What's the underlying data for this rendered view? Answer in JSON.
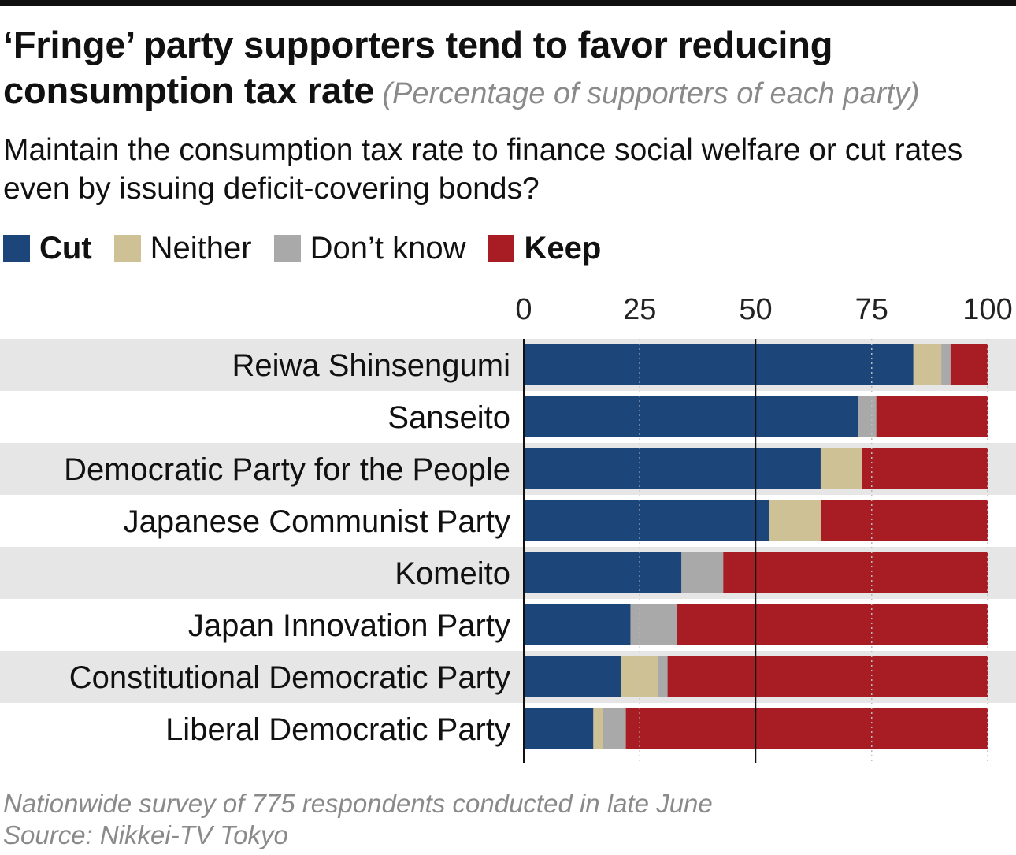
{
  "title": "‘Fringe’ party supporters tend to favor reducing consumption tax rate",
  "subtitle": "(Percentage of supporters of each party)",
  "question": "Maintain the consumption tax rate to finance social welfare or cut rates even by issuing deficit-covering bonds?",
  "footnote": "Nationwide survey of 775 respondents conducted in late June",
  "source": "Source: Nikkei-TV Tokyo",
  "chart_data": {
    "type": "bar",
    "orientation": "horizontal",
    "stacked": true,
    "categories": [
      "Reiwa Shinsengumi",
      "Sanseito",
      "Democratic Party for the People",
      "Japanese Communist Party",
      "Komeito",
      "Japan Innovation Party",
      "Constitutional Democratic Party",
      "Liberal Democratic Party"
    ],
    "series": [
      {
        "name": "Cut",
        "color": "#1c4579",
        "values": [
          84,
          72,
          64,
          53,
          34,
          23,
          21,
          15
        ]
      },
      {
        "name": "Neither",
        "color": "#cfc196",
        "values": [
          6,
          0,
          9,
          11,
          0,
          0,
          8,
          2
        ]
      },
      {
        "name": "Don’t know",
        "color": "#a9a9a9",
        "values": [
          2,
          4,
          0,
          0,
          9,
          10,
          2,
          5
        ]
      },
      {
        "name": "Keep",
        "color": "#a71d23",
        "values": [
          8,
          24,
          27,
          36,
          57,
          67,
          69,
          78
        ]
      }
    ],
    "xticks": [
      "0",
      "25",
      "50",
      "75",
      "100"
    ],
    "xlim": [
      0,
      100
    ],
    "grid": "dotted vertical",
    "legend_position": "top-left"
  }
}
